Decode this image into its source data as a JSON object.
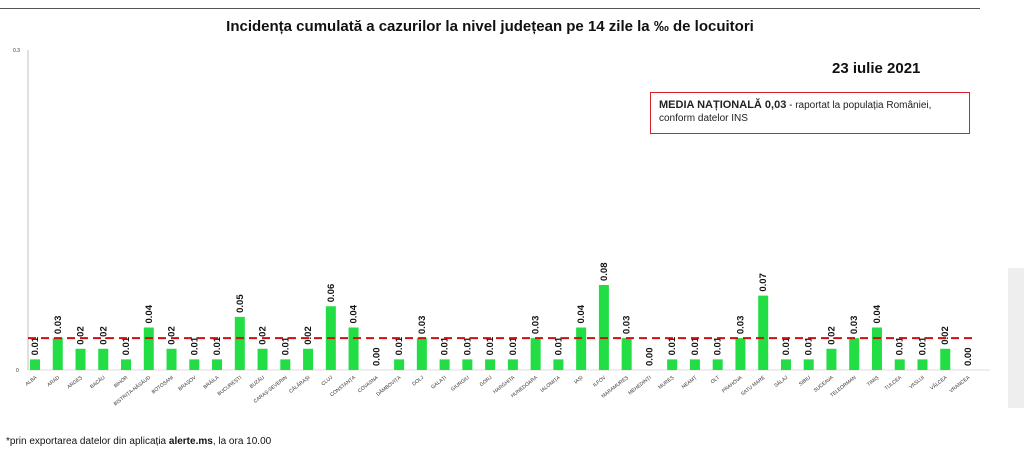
{
  "title": "Incidența cumulată a cazurilor la nivel județean pe 14 zile   la ‰ de locuitori",
  "date": "23 iulie 2021",
  "national_box": {
    "bold": "MEDIA NAȚIONALĂ 0,03",
    "rest_line1": " - raportat la populația României,",
    "rest_line2": "conform datelor INS"
  },
  "footnote": {
    "prefix": "*prin exportarea datelor din aplicația ",
    "bold": "alerte.ms",
    "suffix": ", la ora 10.00"
  },
  "colors": {
    "bar": "#22dd44",
    "reference_line": "#cc1111",
    "box_border": "#d9212c"
  },
  "chart_data": {
    "type": "bar",
    "title": "Incidența cumulată a cazurilor la nivel județean pe 14 zile   la ‰ de locuitori",
    "xlabel": "",
    "ylabel": "",
    "ylim": [
      0,
      0.3
    ],
    "yticks": [
      "0",
      "0.3"
    ],
    "categories": [
      "ALBA",
      "ARAD",
      "ARGEȘ",
      "BACĂU",
      "BIHOR",
      "BISTRIȚA-NĂSĂUD",
      "BOTOȘANI",
      "BRAȘOV",
      "BRĂILA",
      "BUCUREȘTI",
      "BUZĂU",
      "CARAȘ-SEVERIN",
      "CĂLĂRAȘI",
      "CLUJ",
      "CONSTANȚA",
      "COVASNA",
      "DÂMBOVIȚA",
      "DOLJ",
      "GALAȚI",
      "GIURGIU",
      "GORJ",
      "HARGHITA",
      "HUNEDOARA",
      "IALOMIȚA",
      "IAȘI",
      "ILFOV",
      "MARAMUREȘ",
      "MEHEDINȚI",
      "MUREȘ",
      "NEAMȚ",
      "OLT",
      "PRAHOVA",
      "SATU MARE",
      "SĂLAJ",
      "SIBIU",
      "SUCEAVA",
      "TELEORMAN",
      "TIMIȘ",
      "TULCEA",
      "VASLUI",
      "VÂLCEA",
      "VRANCEA"
    ],
    "values": [
      0.01,
      0.03,
      0.02,
      0.02,
      0.01,
      0.04,
      0.02,
      0.01,
      0.01,
      0.05,
      0.02,
      0.01,
      0.02,
      0.06,
      0.04,
      0.0,
      0.01,
      0.03,
      0.01,
      0.01,
      0.01,
      0.01,
      0.03,
      0.01,
      0.04,
      0.08,
      0.03,
      0.0,
      0.01,
      0.01,
      0.01,
      0.03,
      0.07,
      0.01,
      0.01,
      0.02,
      0.03,
      0.04,
      0.01,
      0.01,
      0.02,
      0.0
    ],
    "value_labels": [
      "0.01",
      "0.03",
      "0.02",
      "0.02",
      "0.01",
      "0.04",
      "0.02",
      "0.01",
      "0.01",
      "0.05",
      "0.02",
      "0.01",
      "0.02",
      "0.06",
      "0.04",
      "0.00",
      "0.01",
      "0.03",
      "0.01",
      "0.01",
      "0.01",
      "0.01",
      "0.03",
      "0.01",
      "0.04",
      "0.08",
      "0.03",
      "0.00",
      "0.01",
      "0.01",
      "0.01",
      "0.03",
      "0.07",
      "0.01",
      "0.01",
      "0.02",
      "0.03",
      "0.04",
      "0.01",
      "0.01",
      "0.02",
      "0.00"
    ],
    "reference_line": {
      "value": 0.03
    },
    "grid": false,
    "legend": "none"
  }
}
